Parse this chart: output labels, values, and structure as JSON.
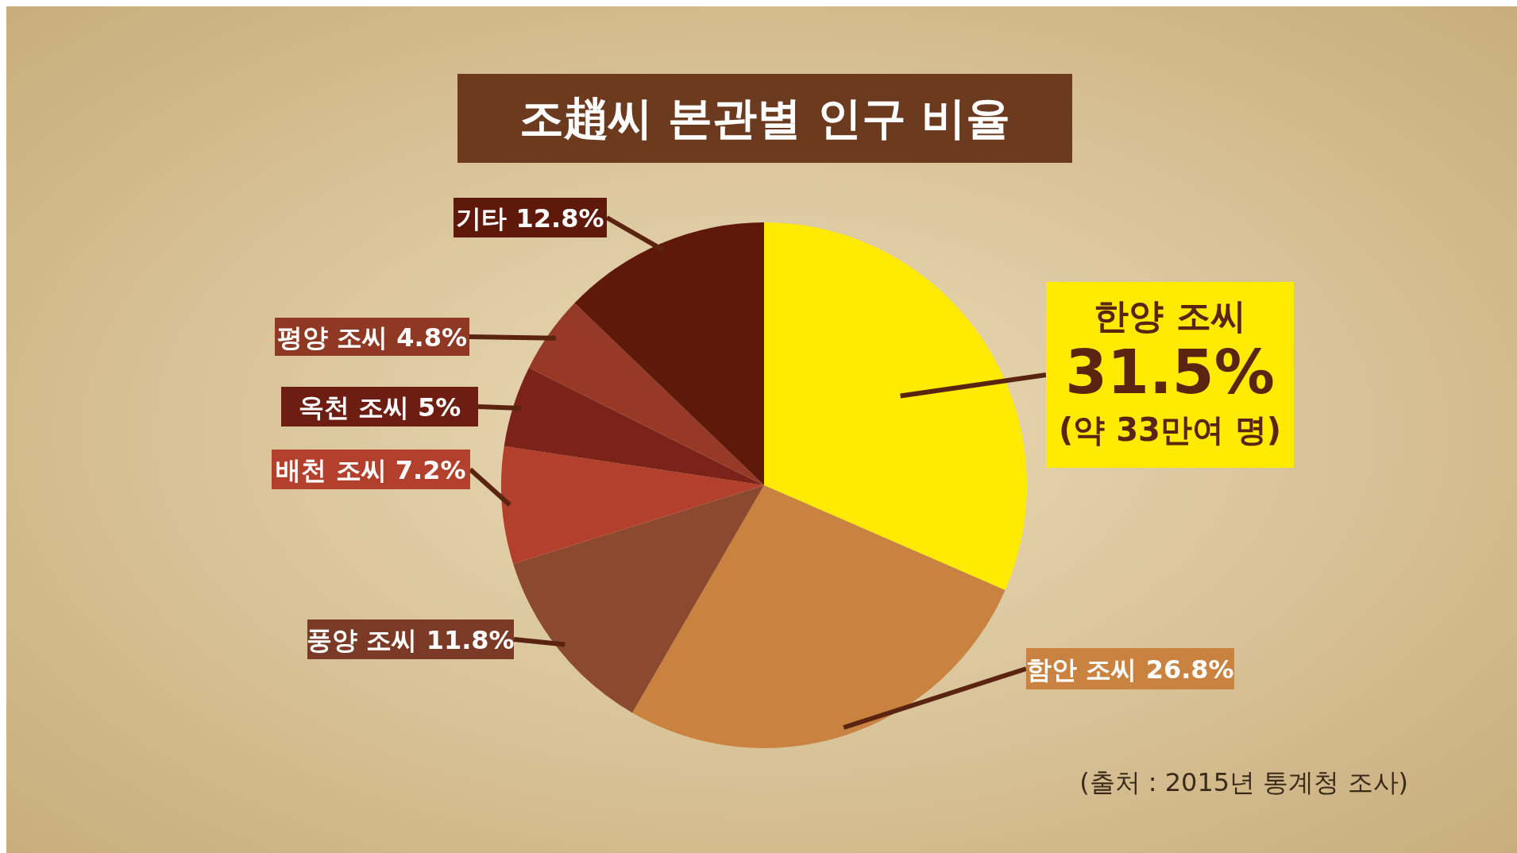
{
  "chart_data": {
    "type": "pie",
    "title": "조趙씨 본관별 인구 비율",
    "categories": [
      "한양 조씨",
      "함안 조씨",
      "풍양 조씨",
      "배천 조씨",
      "옥천 조씨",
      "평양 조씨",
      "기타"
    ],
    "values": [
      31.5,
      26.8,
      11.8,
      7.2,
      5,
      4.8,
      12.8
    ],
    "value_labels": [
      "31.5%",
      "26.8%",
      "11.8%",
      "7.2%",
      "5%",
      "4.8%",
      "12.8%"
    ],
    "colors": [
      "#ffea00",
      "#c9823f",
      "#8b4a2f",
      "#b3402c",
      "#7b2319",
      "#963a27",
      "#5f190a"
    ],
    "annotations": [
      "(약 33만여 명)",
      "(출처 : 2015년 통계청 조사)"
    ]
  }
}
